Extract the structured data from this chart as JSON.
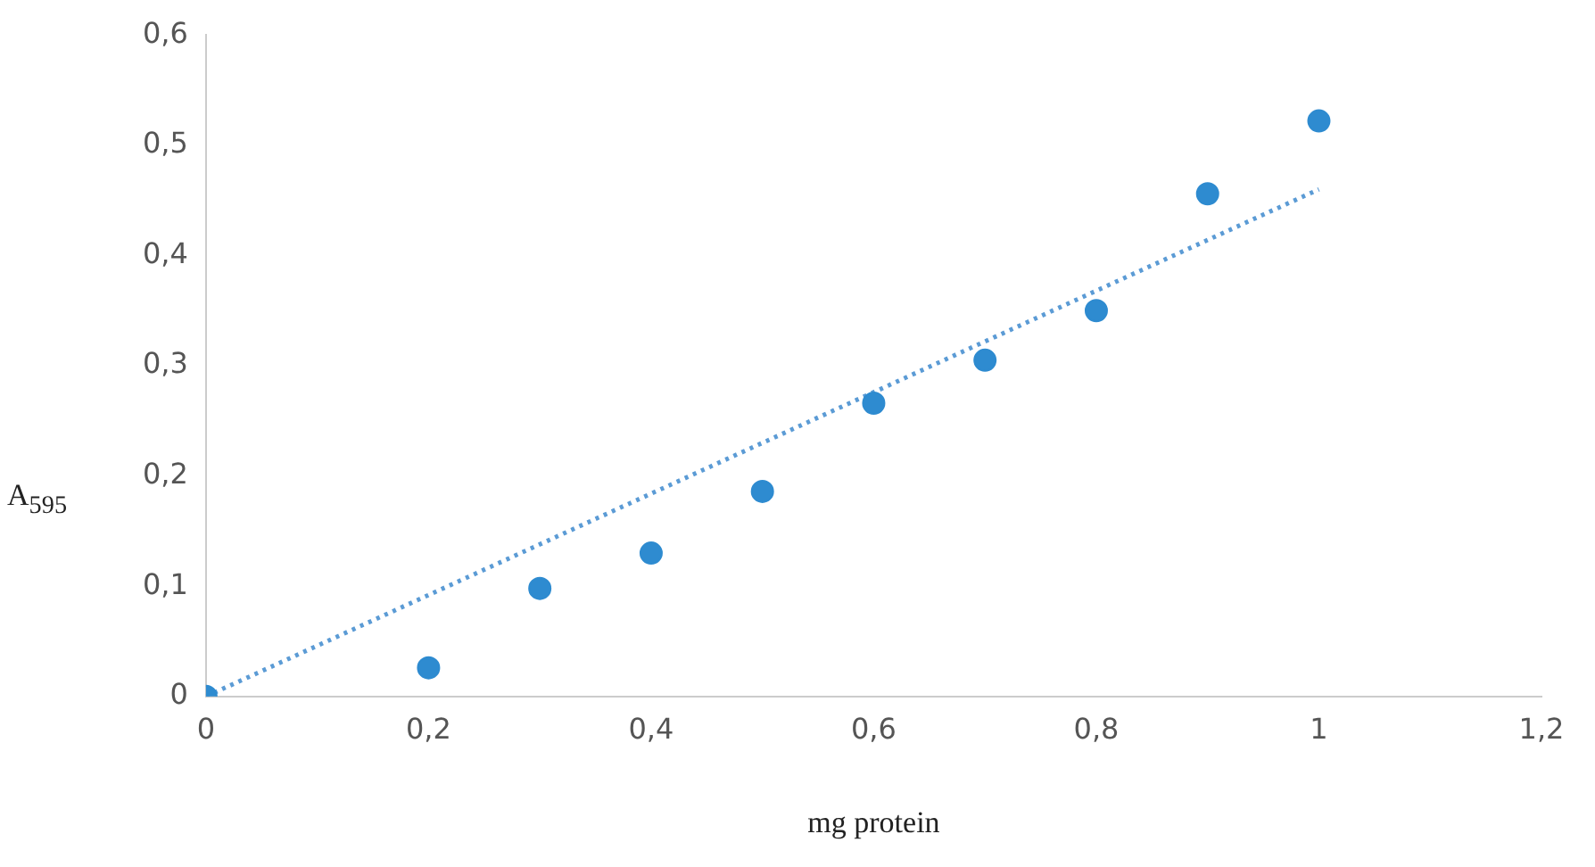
{
  "chart_data": {
    "type": "scatter",
    "xlabel": "mg protein",
    "ylabel": "A$_{595}$",
    "grid": false,
    "marker": "circle",
    "xlim": [
      0,
      1.2
    ],
    "xticks": [
      0,
      {
        "value": 0.2,
        "label": "0,2"
      },
      {
        "value": 0.4,
        "label": "0,4"
      },
      {
        "value": 0.6,
        "label": "0,6"
      },
      {
        "value": 0.8,
        "label": "0,8"
      },
      1,
      {
        "value": 1.2,
        "label": "1,2"
      }
    ],
    "ylim": [
      0,
      0.6
    ],
    "yticks": [
      0,
      {
        "value": 0.1,
        "label": "0,1"
      },
      {
        "value": 0.2,
        "label": "0,2"
      },
      {
        "value": 0.3,
        "label": "0,3"
      },
      {
        "value": 0.4,
        "label": "0,4"
      },
      {
        "value": 0.5,
        "label": "0,5"
      },
      {
        "value": 0.6,
        "label": "0,6"
      }
    ],
    "series": [
      {
        "color": "#2e8bd0",
        "x": [
          0,
          0.2,
          0.3,
          0.4,
          0.5,
          0.6,
          0.7,
          0.8,
          0.9,
          1
        ],
        "values": [
          0,
          0.026,
          0.098,
          0.13,
          0.186,
          0.266,
          0.305,
          0.35,
          0.456,
          0.522
        ]
      },
      {
        "type": "line",
        "color": "#5b9bd5",
        "line_style": "dotted",
        "marker": "none",
        "x": [
          0,
          1
        ],
        "values": [
          0,
          0.46
        ]
      }
    ]
  }
}
